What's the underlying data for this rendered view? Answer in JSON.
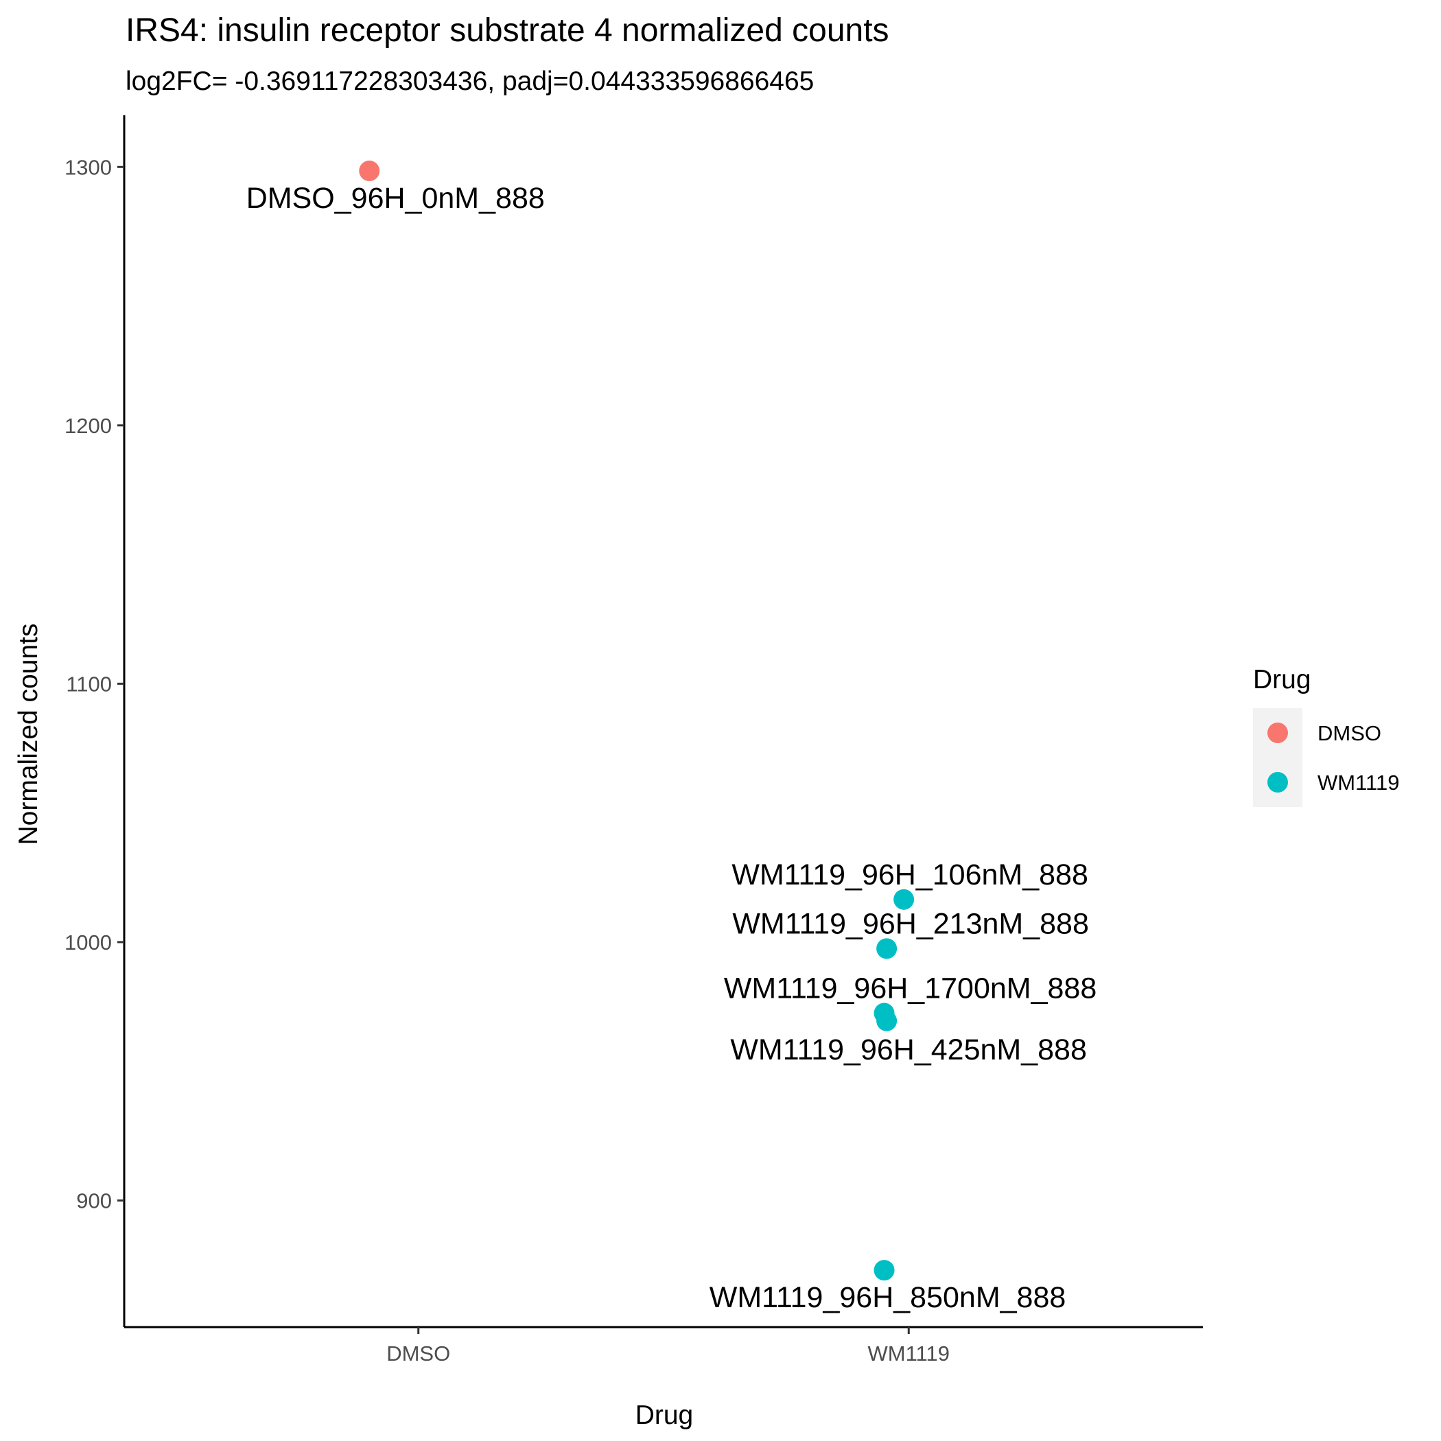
{
  "chart_data": {
    "type": "scatter",
    "title": "IRS4: insulin receptor substrate 4 normalized counts",
    "subtitle": "log2FC= -0.369117228303436, padj=0.044333596866465",
    "xlabel": "Drug",
    "ylabel": "Normalized counts",
    "categories": [
      "DMSO",
      "WM1119"
    ],
    "ylim": [
      851,
      1320
    ],
    "yticks": [
      900,
      1000,
      1100,
      1200,
      1300
    ],
    "grid": false,
    "legend": {
      "title": "Drug",
      "position": "right",
      "entries": [
        {
          "label": "DMSO",
          "color": "#F8766D"
        },
        {
          "label": "WM1119",
          "color": "#00BFC4"
        }
      ]
    },
    "points": [
      {
        "label": "DMSO_96H_0nM_888",
        "category": "DMSO",
        "x": 0.9,
        "y": 1298.5,
        "color": "#F8766D"
      },
      {
        "label": "WM1119_96H_106nM_888",
        "category": "WM1119",
        "x": 1.99,
        "y": 1016.5,
        "color": "#00BFC4"
      },
      {
        "label": "WM1119_96H_213nM_888",
        "category": "WM1119",
        "x": 1.955,
        "y": 997.5,
        "color": "#00BFC4"
      },
      {
        "label": "WM1119_96H_1700nM_888",
        "category": "WM1119",
        "x": 1.95,
        "y": 972.5,
        "color": "#00BFC4"
      },
      {
        "label": "WM1119_96H_425nM_888",
        "category": "WM1119",
        "x": 1.955,
        "y": 969.5,
        "color": "#00BFC4"
      },
      {
        "label": "WM1119_96H_850nM_888",
        "category": "WM1119",
        "x": 1.95,
        "y": 873,
        "color": "#00BFC4"
      }
    ]
  }
}
